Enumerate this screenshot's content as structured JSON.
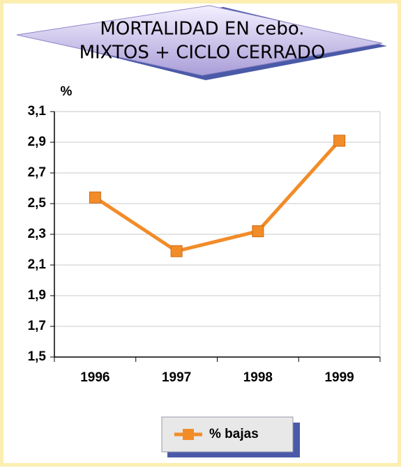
{
  "chart_data": {
    "type": "line",
    "title": [
      "MORTALIDAD EN cebo.",
      "MIXTOS + CICLO CERRADO"
    ],
    "y_label": "%",
    "categories": [
      "1996",
      "1997",
      "1998",
      "1999"
    ],
    "series": [
      {
        "name": "% bajas",
        "color": "#f28c28",
        "values": [
          2.54,
          2.19,
          2.32,
          2.91
        ]
      }
    ],
    "ylim": [
      1.5,
      3.1
    ],
    "yticks": [
      {
        "value": 1.5,
        "label": "1,5"
      },
      {
        "value": 1.7,
        "label": "1,7"
      },
      {
        "value": 1.9,
        "label": "1,9"
      },
      {
        "value": 2.1,
        "label": "2,1"
      },
      {
        "value": 2.3,
        "label": "2,3"
      },
      {
        "value": 2.5,
        "label": "2,5"
      },
      {
        "value": 2.7,
        "label": "2,7"
      },
      {
        "value": 2.9,
        "label": "2,9"
      },
      {
        "value": 3.1,
        "label": "3,1"
      }
    ],
    "grid": true,
    "legend": "bottom"
  }
}
